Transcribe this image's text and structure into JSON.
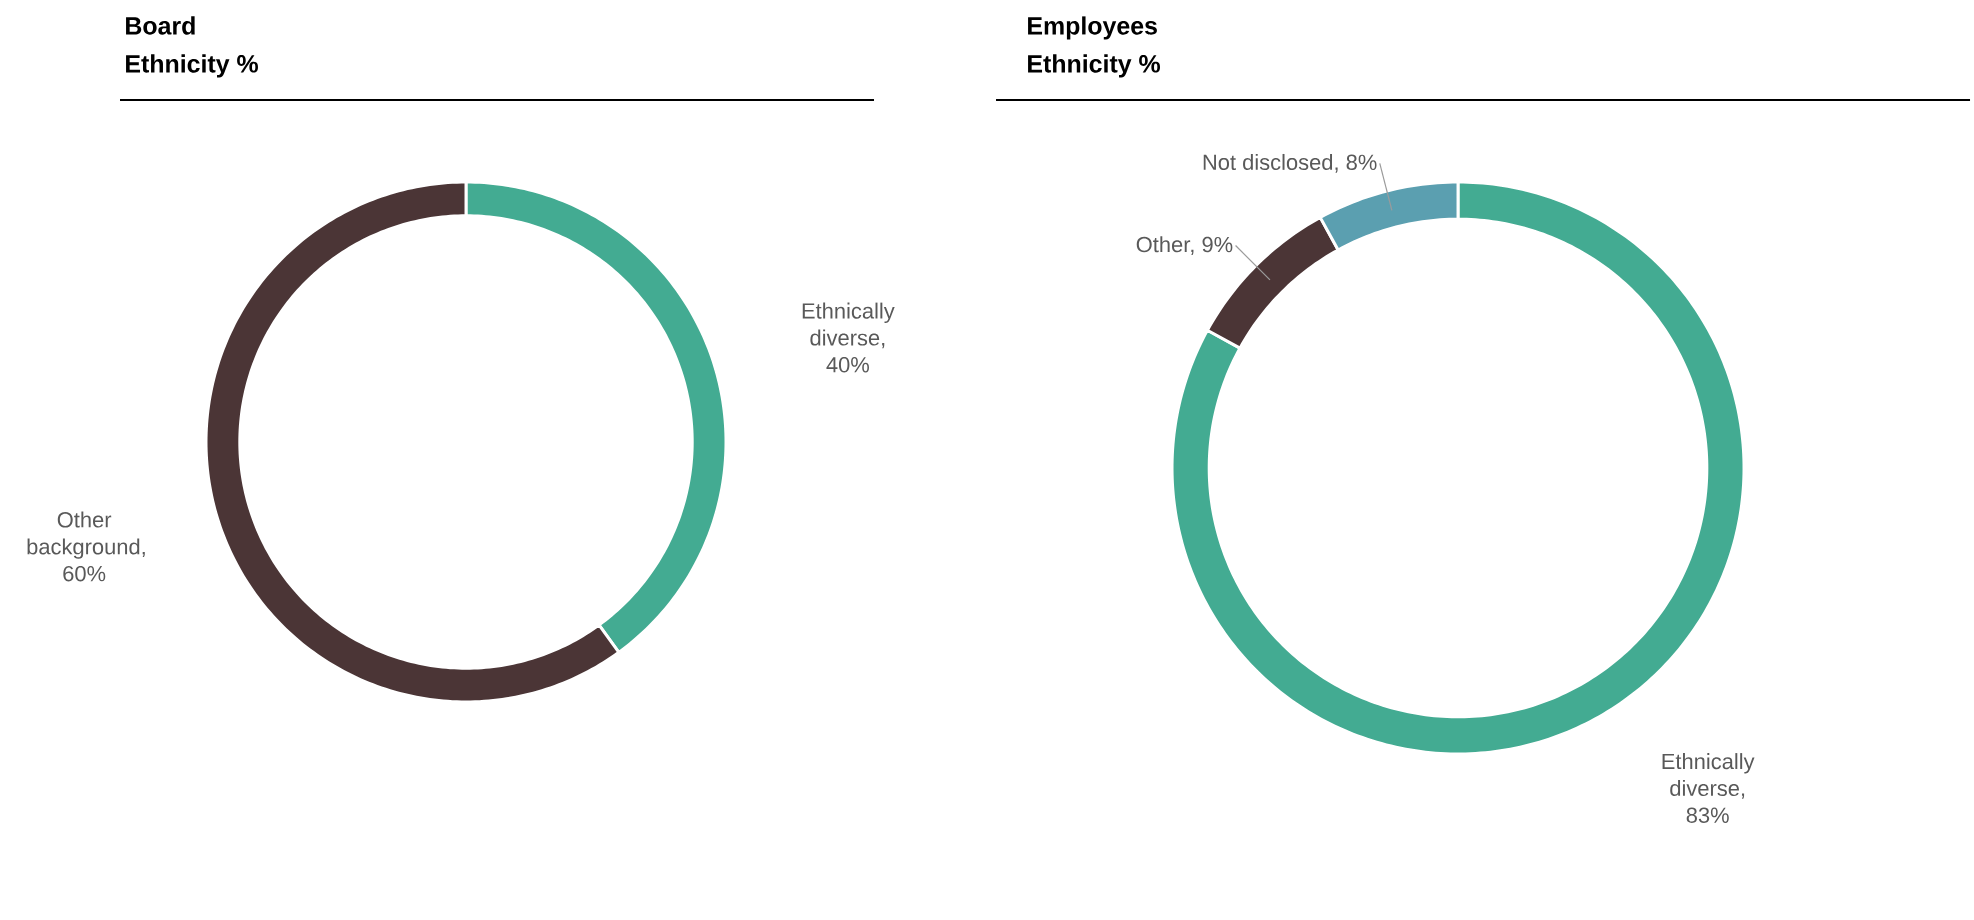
{
  "chart_data": [
    {
      "type": "donut",
      "title": "Board",
      "subtitle": "Ethnicity %",
      "categories": [
        "Ethnically diverse, 40%",
        "Other background, 60%"
      ],
      "values": [
        40,
        60
      ],
      "colors": [
        "#43ab92",
        "#4b3536"
      ]
    },
    {
      "type": "donut",
      "title": "Employees",
      "subtitle": "Ethnicity %",
      "categories": [
        "Ethnically diverse, 83%",
        "Other, 9%",
        "Not disclosed, 8%"
      ],
      "values": [
        83,
        9,
        8
      ],
      "colors": [
        "#43ab92",
        "#4b3536",
        "#5b9fb0"
      ]
    }
  ]
}
